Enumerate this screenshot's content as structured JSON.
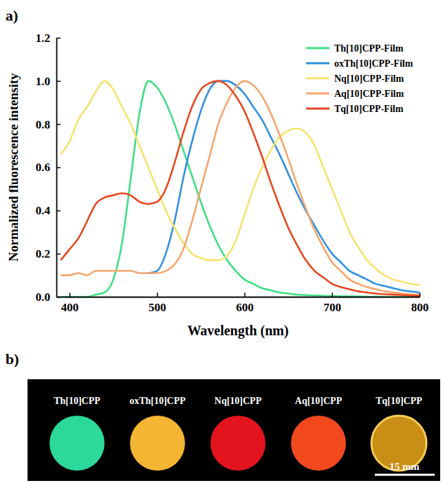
{
  "chart_data": {
    "type": "line",
    "panel_label": "a)",
    "x_label": "Wavelength (nm)",
    "y_label": "Normalized fluorescence intensity",
    "x": [
      390,
      400,
      410,
      420,
      430,
      440,
      450,
      460,
      470,
      480,
      490,
      500,
      510,
      520,
      530,
      540,
      550,
      560,
      570,
      580,
      590,
      600,
      610,
      620,
      630,
      640,
      650,
      660,
      670,
      680,
      690,
      700,
      710,
      720,
      730,
      740,
      750,
      760,
      770,
      780,
      790,
      800
    ],
    "series": [
      {
        "name": "Th[10]CPP-Film",
        "color": "#3ddf85",
        "values": [
          0,
          0,
          0,
          0,
          0.01,
          0.02,
          0.08,
          0.25,
          0.55,
          0.85,
          1.0,
          0.97,
          0.9,
          0.8,
          0.68,
          0.56,
          0.44,
          0.33,
          0.24,
          0.17,
          0.12,
          0.08,
          0.06,
          0.04,
          0.03,
          0.02,
          0.015,
          0.01,
          0.008,
          0.006,
          0.005,
          0.004,
          0.003,
          0.002,
          0.002,
          0.001,
          0.001,
          0,
          0,
          0,
          0,
          0
        ]
      },
      {
        "name": "oxTh[10]CPP-Film",
        "color": "#2f8fe0",
        "values": [
          null,
          null,
          null,
          null,
          null,
          null,
          null,
          null,
          null,
          null,
          0.11,
          0.12,
          0.2,
          0.35,
          0.55,
          0.72,
          0.86,
          0.96,
          1.0,
          1.0,
          0.98,
          0.94,
          0.88,
          0.82,
          0.74,
          0.66,
          0.57,
          0.48,
          0.4,
          0.33,
          0.26,
          0.2,
          0.16,
          0.12,
          0.1,
          0.08,
          0.06,
          0.05,
          0.04,
          0.03,
          0.025,
          0.02
        ]
      },
      {
        "name": "Nq[10]CPP-Film",
        "color": "#f6e36c",
        "values": [
          0.66,
          0.72,
          0.82,
          0.88,
          0.95,
          1.0,
          0.96,
          0.88,
          0.8,
          0.7,
          0.6,
          0.5,
          0.4,
          0.32,
          0.25,
          0.2,
          0.18,
          0.17,
          0.17,
          0.19,
          0.26,
          0.38,
          0.5,
          0.6,
          0.68,
          0.74,
          0.77,
          0.78,
          0.76,
          0.7,
          0.6,
          0.5,
          0.4,
          0.3,
          0.23,
          0.17,
          0.13,
          0.1,
          0.08,
          0.07,
          0.06,
          0.055
        ]
      },
      {
        "name": "Aq[10]CPP-Film",
        "color": "#f6a46c",
        "values": [
          0.1,
          0.1,
          0.11,
          0.1,
          0.12,
          0.12,
          0.12,
          0.12,
          0.12,
          0.11,
          0.11,
          0.11,
          0.12,
          0.15,
          0.22,
          0.35,
          0.5,
          0.65,
          0.8,
          0.9,
          0.97,
          1.0,
          0.98,
          0.93,
          0.85,
          0.75,
          0.64,
          0.52,
          0.41,
          0.31,
          0.23,
          0.16,
          0.12,
          0.08,
          0.06,
          0.045,
          0.035,
          0.025,
          0.02,
          0.015,
          0.012,
          0.01
        ]
      },
      {
        "name": "Tq[10]CPP-Film",
        "color": "#e8441f",
        "values": [
          0.17,
          0.22,
          0.27,
          0.35,
          0.43,
          0.46,
          0.47,
          0.48,
          0.47,
          0.44,
          0.43,
          0.44,
          0.5,
          0.62,
          0.76,
          0.88,
          0.96,
          0.99,
          1.0,
          0.98,
          0.93,
          0.86,
          0.76,
          0.65,
          0.53,
          0.42,
          0.32,
          0.24,
          0.17,
          0.12,
          0.09,
          0.06,
          0.045,
          0.035,
          0.025,
          0.02,
          0.015,
          0.012,
          0.01,
          0.008,
          0.006,
          0.005
        ]
      }
    ],
    "xlim": [
      385,
      800
    ],
    "xticks": [
      400,
      500,
      600,
      700,
      800
    ],
    "ylim": [
      0,
      1.2
    ],
    "yticks": [
      {
        "value": 0,
        "label": "0.0"
      },
      {
        "value": 0.2,
        "label": "0.2"
      },
      {
        "value": 0.4,
        "label": "0.4"
      },
      {
        "value": 0.6,
        "label": "0.6"
      },
      {
        "value": 0.8,
        "label": "0.8"
      },
      {
        "value": 1.0,
        "label": "1.0"
      },
      {
        "value": 1.2,
        "label": "1.2"
      }
    ],
    "grid": false,
    "legend": "upper right"
  },
  "panel_b": {
    "panel_label": "b)",
    "samples": [
      {
        "label": "Th[10]CPP",
        "color": "#2bd99b"
      },
      {
        "label": "oxTh[10]CPP",
        "color": "#f4b632"
      },
      {
        "label": "Nq[10]CPP",
        "color": "#e3141d"
      },
      {
        "label": "Aq[10]CPP",
        "color": "#f2481e"
      },
      {
        "label": "Tq[10]CPP",
        "color": "#c98e16"
      }
    ],
    "scale_bar": "15 mm"
  }
}
